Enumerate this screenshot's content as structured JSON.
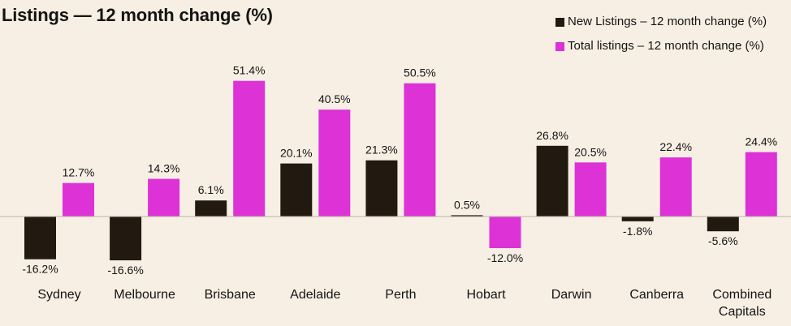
{
  "chart_data": {
    "type": "bar",
    "title": "Listings — 12 month change (%)",
    "categories": [
      "Sydney",
      "Melbourne",
      "Brisbane",
      "Adelaide",
      "Perth",
      "Hobart",
      "Darwin",
      "Canberra",
      "Combined\nCapitals"
    ],
    "series": [
      {
        "name": "New Listings – 12 month change (%)",
        "color": "#221a10",
        "values": [
          -16.2,
          -16.6,
          6.1,
          20.1,
          21.3,
          0.5,
          26.8,
          -1.8,
          -5.6
        ],
        "labels": [
          "-16.2%",
          "-16.6%",
          "6.1%",
          "20.1%",
          "21.3%",
          "0.5%",
          "26.8%",
          "-1.8%",
          "-5.6%"
        ]
      },
      {
        "name": "Total listings – 12 month change (%)",
        "color": "#dc32d6",
        "values": [
          12.7,
          14.3,
          51.4,
          40.5,
          50.5,
          -12.0,
          20.5,
          22.4,
          24.4
        ],
        "labels": [
          "12.7%",
          "14.3%",
          "51.4%",
          "40.5%",
          "50.5%",
          "-12.0%",
          "20.5%",
          "22.4%",
          "24.4%"
        ]
      }
    ],
    "xlabel": "",
    "ylabel": "",
    "ylim": [
      -20,
      52
    ],
    "grid": false,
    "legend": "top-right",
    "data_labels": true,
    "zero_line_color": "#bdb6ab"
  }
}
